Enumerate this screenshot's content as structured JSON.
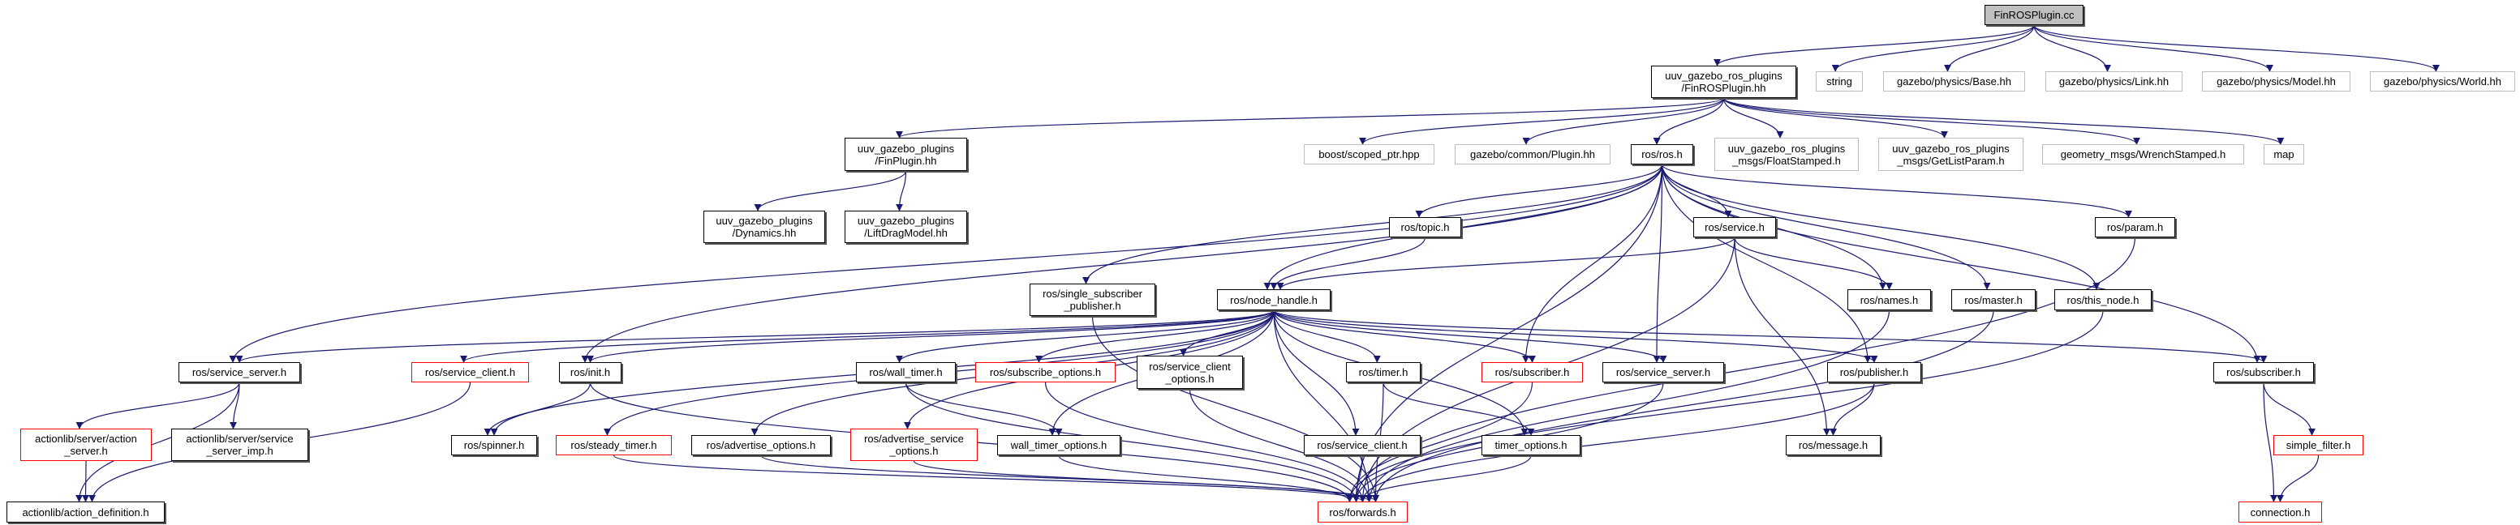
{
  "colors": {
    "edge": "#191970",
    "truncated_border": "#ff0000",
    "missing_border": "#bfbfbf",
    "root_fill": "#bfbfbf"
  },
  "nodes": [
    {
      "id": "root",
      "kind": "root",
      "lines": [
        "FinROSPlugin.cc"
      ]
    },
    {
      "id": "finros_hh",
      "kind": "normal",
      "lines": [
        "uuv_gazebo_ros_plugins",
        "/FinROSPlugin.hh"
      ]
    },
    {
      "id": "string",
      "kind": "missing",
      "lines": [
        "string"
      ]
    },
    {
      "id": "base",
      "kind": "missing",
      "lines": [
        "gazebo/physics/Base.hh"
      ]
    },
    {
      "id": "link",
      "kind": "missing",
      "lines": [
        "gazebo/physics/Link.hh"
      ]
    },
    {
      "id": "model",
      "kind": "missing",
      "lines": [
        "gazebo/physics/Model.hh"
      ]
    },
    {
      "id": "world",
      "kind": "missing",
      "lines": [
        "gazebo/physics/World.hh"
      ]
    },
    {
      "id": "finplugin",
      "kind": "normal",
      "lines": [
        "uuv_gazebo_plugins",
        "/FinPlugin.hh"
      ]
    },
    {
      "id": "boost",
      "kind": "missing",
      "lines": [
        "boost/scoped_ptr.hpp"
      ]
    },
    {
      "id": "plugin",
      "kind": "missing",
      "lines": [
        "gazebo/common/Plugin.hh"
      ]
    },
    {
      "id": "ros",
      "kind": "normal",
      "lines": [
        "ros/ros.h"
      ]
    },
    {
      "id": "floatst",
      "kind": "missing",
      "lines": [
        "uuv_gazebo_ros_plugins",
        "_msgs/FloatStamped.h"
      ]
    },
    {
      "id": "getlist",
      "kind": "missing",
      "lines": [
        "uuv_gazebo_ros_plugins",
        "_msgs/GetListParam.h"
      ]
    },
    {
      "id": "wrench",
      "kind": "missing",
      "lines": [
        "geometry_msgs/WrenchStamped.h"
      ]
    },
    {
      "id": "map",
      "kind": "missing",
      "lines": [
        "map"
      ]
    },
    {
      "id": "dynamics",
      "kind": "normal",
      "lines": [
        "uuv_gazebo_plugins",
        "/Dynamics.hh"
      ]
    },
    {
      "id": "liftdrag",
      "kind": "normal",
      "lines": [
        "uuv_gazebo_plugins",
        "/LiftDragModel.hh"
      ]
    },
    {
      "id": "topic",
      "kind": "normal",
      "lines": [
        "ros/topic.h"
      ]
    },
    {
      "id": "service",
      "kind": "normal",
      "lines": [
        "ros/service.h"
      ]
    },
    {
      "id": "param",
      "kind": "normal",
      "lines": [
        "ros/param.h"
      ]
    },
    {
      "id": "ssp",
      "kind": "normal",
      "lines": [
        "ros/single_subscriber",
        "_publisher.h"
      ]
    },
    {
      "id": "nodehandle",
      "kind": "normal",
      "lines": [
        "ros/node_handle.h"
      ]
    },
    {
      "id": "names",
      "kind": "normal",
      "lines": [
        "ros/names.h"
      ]
    },
    {
      "id": "master",
      "kind": "normal",
      "lines": [
        "ros/master.h"
      ]
    },
    {
      "id": "thisnode",
      "kind": "normal",
      "lines": [
        "ros/this_node.h"
      ]
    },
    {
      "id": "srvserver_l",
      "kind": "normal",
      "lines": [
        "ros/service_server.h"
      ]
    },
    {
      "id": "srvclient_r",
      "kind": "truncated",
      "lines": [
        "ros/service_client.h"
      ]
    },
    {
      "id": "init",
      "kind": "normal",
      "lines": [
        "ros/init.h"
      ]
    },
    {
      "id": "walltimer",
      "kind": "normal",
      "lines": [
        "ros/wall_timer.h"
      ]
    },
    {
      "id": "subopts",
      "kind": "truncated",
      "lines": [
        "ros/subscribe_options.h"
      ]
    },
    {
      "id": "scopts",
      "kind": "normal",
      "lines": [
        "ros/service_client",
        "_options.h"
      ]
    },
    {
      "id": "timer",
      "kind": "normal",
      "lines": [
        "ros/timer.h"
      ]
    },
    {
      "id": "subscriber_r",
      "kind": "truncated",
      "lines": [
        "ros/subscriber.h"
      ]
    },
    {
      "id": "srvserver_m",
      "kind": "normal",
      "lines": [
        "ros/service_server.h"
      ]
    },
    {
      "id": "publisher",
      "kind": "normal",
      "lines": [
        "ros/publisher.h"
      ]
    },
    {
      "id": "subscriber_b",
      "kind": "normal",
      "lines": [
        "ros/subscriber.h"
      ]
    },
    {
      "id": "actionserver",
      "kind": "truncated",
      "lines": [
        "actionlib/server/action",
        "_server.h"
      ]
    },
    {
      "id": "ssimp",
      "kind": "normal",
      "lines": [
        "actionlib/server/service",
        "_server_imp.h"
      ]
    },
    {
      "id": "spinner",
      "kind": "normal",
      "lines": [
        "ros/spinner.h"
      ]
    },
    {
      "id": "steady",
      "kind": "truncated",
      "lines": [
        "ros/steady_timer.h"
      ]
    },
    {
      "id": "advopts",
      "kind": "normal",
      "lines": [
        "ros/advertise_options.h"
      ]
    },
    {
      "id": "advsrvopts",
      "kind": "truncated",
      "lines": [
        "ros/advertise_service",
        "_options.h"
      ]
    },
    {
      "id": "wtopts",
      "kind": "normal",
      "lines": [
        "wall_timer_options.h"
      ]
    },
    {
      "id": "srvclient",
      "kind": "normal",
      "lines": [
        "ros/service_client.h"
      ]
    },
    {
      "id": "topts",
      "kind": "normal",
      "lines": [
        "timer_options.h"
      ]
    },
    {
      "id": "message",
      "kind": "normal",
      "lines": [
        "ros/message.h"
      ]
    },
    {
      "id": "simplefilter",
      "kind": "truncated",
      "lines": [
        "simple_filter.h"
      ]
    },
    {
      "id": "actiondef",
      "kind": "normal",
      "lines": [
        "actionlib/action_definition.h"
      ]
    },
    {
      "id": "forwards",
      "kind": "truncated",
      "lines": [
        "ros/forwards.h"
      ]
    },
    {
      "id": "connection",
      "kind": "truncated",
      "lines": [
        "connection.h"
      ]
    }
  ],
  "edges": [
    [
      "root",
      "finros_hh"
    ],
    [
      "root",
      "string"
    ],
    [
      "root",
      "base"
    ],
    [
      "root",
      "link"
    ],
    [
      "root",
      "model"
    ],
    [
      "root",
      "world"
    ],
    [
      "finros_hh",
      "finplugin"
    ],
    [
      "finros_hh",
      "boost"
    ],
    [
      "finros_hh",
      "plugin"
    ],
    [
      "finros_hh",
      "ros"
    ],
    [
      "finros_hh",
      "floatst"
    ],
    [
      "finros_hh",
      "getlist"
    ],
    [
      "finros_hh",
      "wrench"
    ],
    [
      "finros_hh",
      "map"
    ],
    [
      "finplugin",
      "dynamics"
    ],
    [
      "finplugin",
      "liftdrag"
    ],
    [
      "ros",
      "topic"
    ],
    [
      "ros",
      "service"
    ],
    [
      "ros",
      "param"
    ],
    [
      "ros",
      "names"
    ],
    [
      "ros",
      "master"
    ],
    [
      "ros",
      "thisnode"
    ],
    [
      "ros",
      "publisher"
    ],
    [
      "ros",
      "subscriber_r"
    ],
    [
      "ros",
      "srvserver_m"
    ],
    [
      "ros",
      "nodehandle"
    ],
    [
      "ros",
      "ssp"
    ],
    [
      "ros",
      "init"
    ],
    [
      "ros",
      "srvserver_l"
    ],
    [
      "ros",
      "subscriber_b"
    ],
    [
      "ros",
      "forwards"
    ],
    [
      "topic",
      "nodehandle"
    ],
    [
      "service",
      "nodehandle"
    ],
    [
      "service",
      "names"
    ],
    [
      "service",
      "message"
    ],
    [
      "service",
      "forwards"
    ],
    [
      "nodehandle",
      "forwards"
    ],
    [
      "nodehandle",
      "srvserver_l"
    ],
    [
      "nodehandle",
      "srvclient_r"
    ],
    [
      "nodehandle",
      "init"
    ],
    [
      "nodehandle",
      "spinner"
    ],
    [
      "nodehandle",
      "steady"
    ],
    [
      "nodehandle",
      "advopts"
    ],
    [
      "nodehandle",
      "advsrvopts"
    ],
    [
      "nodehandle",
      "walltimer"
    ],
    [
      "nodehandle",
      "wtopts"
    ],
    [
      "nodehandle",
      "subopts"
    ],
    [
      "nodehandle",
      "scopts"
    ],
    [
      "nodehandle",
      "srvclient"
    ],
    [
      "nodehandle",
      "timer"
    ],
    [
      "nodehandle",
      "topts"
    ],
    [
      "nodehandle",
      "subscriber_r"
    ],
    [
      "nodehandle",
      "srvserver_m"
    ],
    [
      "nodehandle",
      "publisher"
    ],
    [
      "nodehandle",
      "subscriber_b"
    ],
    [
      "ssp",
      "forwards"
    ],
    [
      "srvserver_l",
      "actionserver"
    ],
    [
      "srvserver_l",
      "ssimp"
    ],
    [
      "srvserver_l",
      "actiondef"
    ],
    [
      "actionserver",
      "actiondef"
    ],
    [
      "srvclient_r",
      "actiondef"
    ],
    [
      "init",
      "spinner"
    ],
    [
      "init",
      "forwards"
    ],
    [
      "walltimer",
      "wtopts"
    ],
    [
      "walltimer",
      "forwards"
    ],
    [
      "subopts",
      "forwards"
    ],
    [
      "scopts",
      "forwards"
    ],
    [
      "timer",
      "topts"
    ],
    [
      "timer",
      "forwards"
    ],
    [
      "subscriber_r",
      "forwards"
    ],
    [
      "srvserver_m",
      "forwards"
    ],
    [
      "publisher",
      "message"
    ],
    [
      "publisher",
      "forwards"
    ],
    [
      "names",
      "forwards"
    ],
    [
      "master",
      "forwards"
    ],
    [
      "thisnode",
      "forwards"
    ],
    [
      "param",
      "forwards"
    ],
    [
      "subscriber_b",
      "simplefilter"
    ],
    [
      "subscriber_b",
      "connection"
    ],
    [
      "simplefilter",
      "connection"
    ],
    [
      "steady",
      "forwards"
    ],
    [
      "advopts",
      "forwards"
    ],
    [
      "advsrvopts",
      "forwards"
    ],
    [
      "wtopts",
      "forwards"
    ],
    [
      "srvclient",
      "forwards"
    ],
    [
      "topts",
      "forwards"
    ]
  ]
}
